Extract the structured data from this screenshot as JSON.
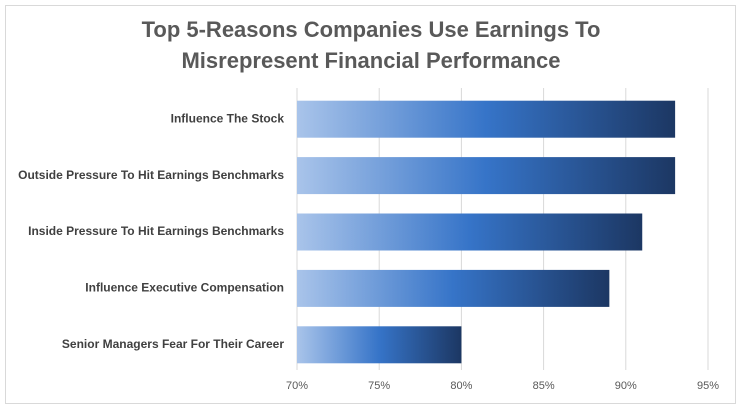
{
  "chart_data": {
    "type": "bar",
    "orientation": "horizontal",
    "title": "Top 5-Reasons Companies Use Earnings To Misrepresent Financial Performance",
    "categories": [
      "Influence The Stock",
      "Outside Pressure To Hit Earnings Benchmarks",
      "Inside Pressure To Hit Earnings Benchmarks",
      "Influence Executive Compensation",
      "Senior Managers Fear For Their Career"
    ],
    "values": [
      93,
      93,
      91,
      89,
      80
    ],
    "color_gradient": [
      "#a9c4ea",
      "#3674c8",
      "#1c3763"
    ],
    "xlim": [
      70,
      95
    ],
    "xticks": [
      {
        "value": 70,
        "label": "70%"
      },
      {
        "value": 75,
        "label": "75%"
      },
      {
        "value": 80,
        "label": "80%"
      },
      {
        "value": 85,
        "label": "85%"
      },
      {
        "value": 90,
        "label": "90%"
      },
      {
        "value": 95,
        "label": "95%"
      }
    ],
    "grid": true
  }
}
